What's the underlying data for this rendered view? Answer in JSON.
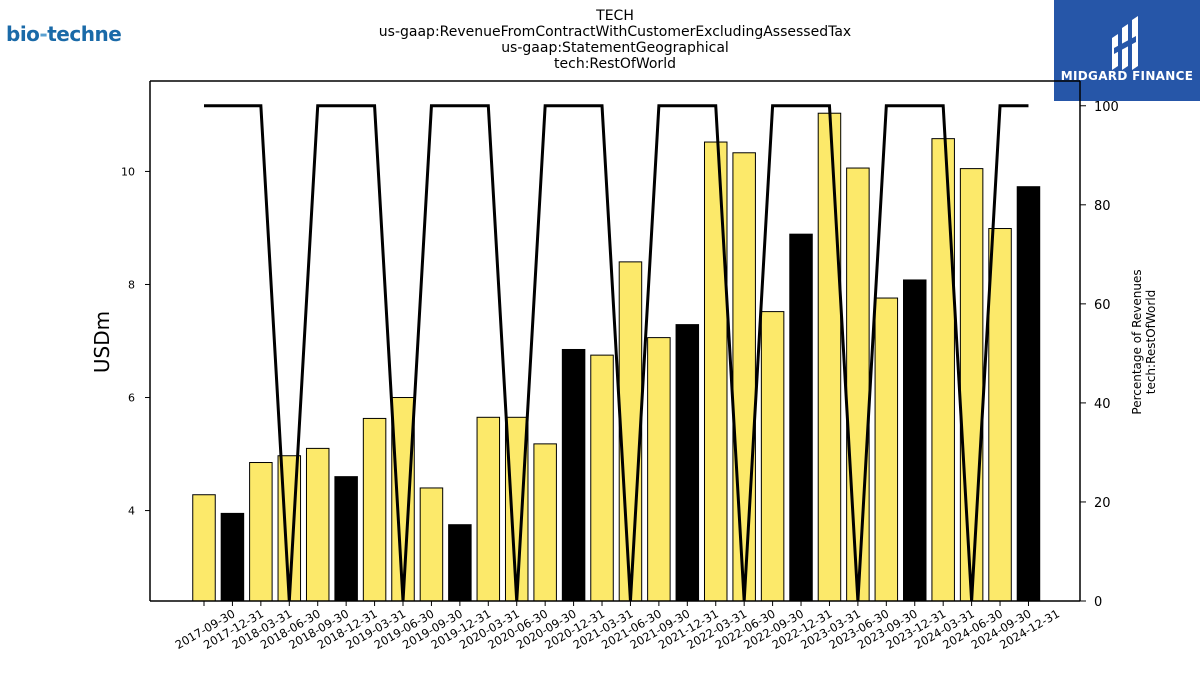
{
  "branding": {
    "left_logo_main": "bio",
    "left_logo_sep": "-",
    "left_logo_end": "techne",
    "right_logo_text": "MIDGARD FINANCE"
  },
  "chart_data": {
    "type": "bar",
    "title_lines": [
      "TECH",
      "us-gaap:RevenueFromContractWithCustomerExcludingAssessedTax",
      "us-gaap:StatementGeographical",
      "tech:RestOfWorld"
    ],
    "ylabel": "USDm",
    "ylabel_right": [
      "Percentage of Revenues",
      "tech:RestOfWorld"
    ],
    "ylim": [
      2.4,
      11.6
    ],
    "yticks": [
      4,
      6,
      8,
      10
    ],
    "ylim_right": [
      0,
      105
    ],
    "yticks_right": [
      0,
      20,
      40,
      60,
      80,
      100
    ],
    "categories": [
      "2017-09-30",
      "2017-12-31",
      "2018-03-31",
      "2018-06-30",
      "2018-09-30",
      "2018-12-31",
      "2019-03-31",
      "2019-06-30",
      "2019-09-30",
      "2019-12-31",
      "2020-03-31",
      "2020-06-30",
      "2020-09-30",
      "2020-12-31",
      "2021-03-31",
      "2021-06-30",
      "2021-09-30",
      "2021-12-31",
      "2022-03-31",
      "2022-06-30",
      "2022-09-30",
      "2022-12-31",
      "2023-03-31",
      "2023-06-30",
      "2023-09-30",
      "2023-12-31",
      "2024-03-31",
      "2024-06-30",
      "2024-09-30",
      "2024-12-31"
    ],
    "values": [
      4.28,
      3.95,
      4.85,
      4.97,
      5.1,
      4.6,
      5.63,
      6.0,
      4.4,
      3.75,
      5.65,
      5.65,
      5.18,
      6.85,
      6.75,
      8.4,
      7.06,
      7.29,
      10.52,
      10.33,
      7.52,
      8.89,
      11.03,
      10.06,
      7.76,
      8.08,
      10.58,
      10.05,
      8.99,
      9.73
    ],
    "bar_colors": [
      "#fce96a",
      "#000000",
      "#fce96a",
      "#fce96a",
      "#fce96a",
      "#000000",
      "#fce96a",
      "#fce96a",
      "#fce96a",
      "#000000",
      "#fce96a",
      "#fce96a",
      "#fce96a",
      "#000000",
      "#fce96a",
      "#fce96a",
      "#fce96a",
      "#000000",
      "#fce96a",
      "#fce96a",
      "#fce96a",
      "#000000",
      "#fce96a",
      "#fce96a",
      "#fce96a",
      "#000000",
      "#fce96a",
      "#fce96a",
      "#fce96a",
      "#000000"
    ],
    "line_series": {
      "axis": "right",
      "values": [
        100,
        100,
        100,
        0,
        100,
        100,
        100,
        0,
        100,
        100,
        100,
        0,
        100,
        100,
        100,
        0,
        100,
        100,
        100,
        0,
        100,
        100,
        100,
        0,
        100,
        100,
        100,
        0,
        100,
        100
      ]
    },
    "grid": false,
    "legend": "none"
  }
}
